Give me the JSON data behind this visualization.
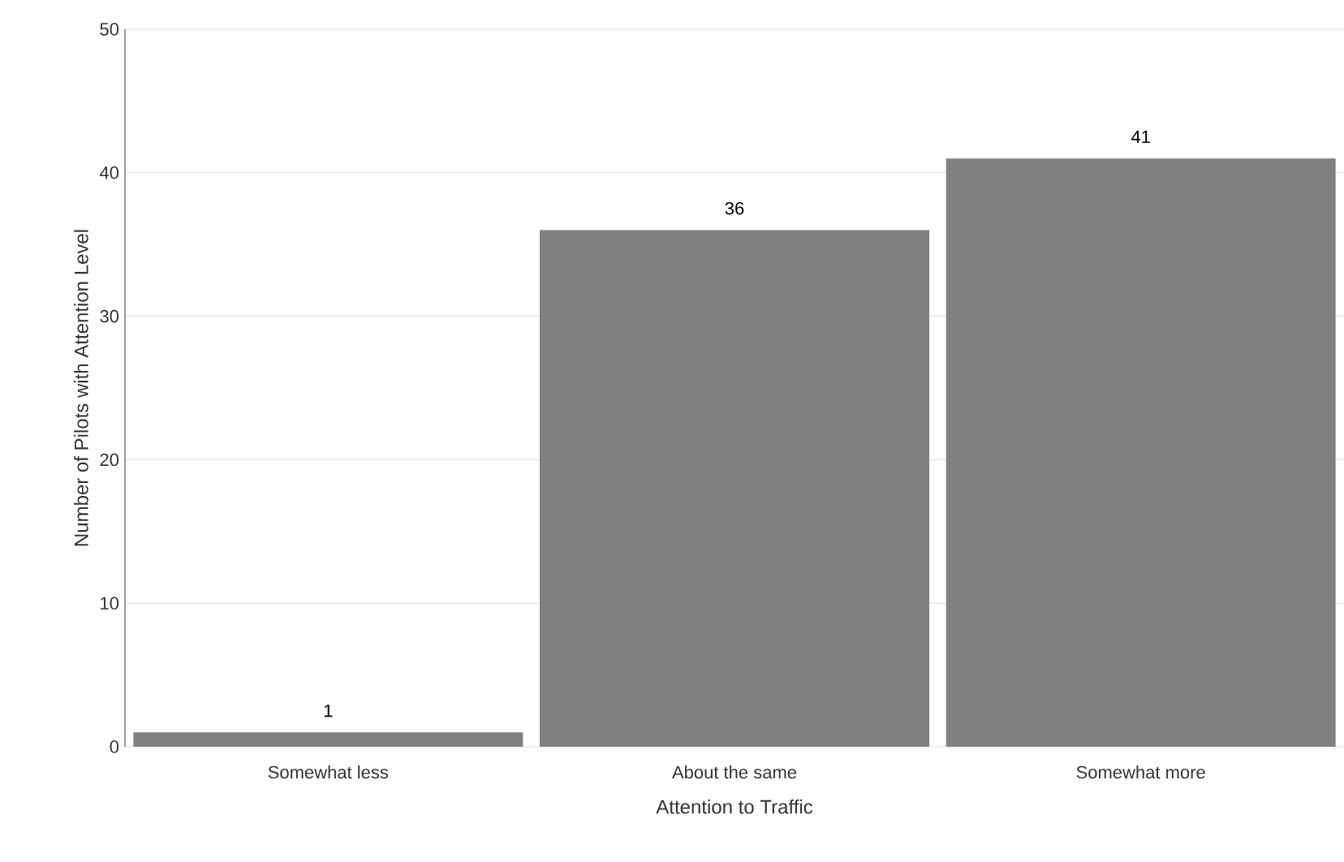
{
  "chart_data": {
    "type": "bar",
    "xlabel": "Attention to Traffic",
    "ylabel": "Number of Pilots with Attention Level",
    "categories": [
      "Somewhat less",
      "About the same",
      "Somewhat more"
    ],
    "values": [
      1,
      36,
      41
    ],
    "color": "#808080",
    "ylim": [
      0,
      50
    ],
    "yticks": [
      0,
      10,
      20,
      30,
      40,
      50
    ],
    "grid": "y",
    "data_labels": true
  }
}
